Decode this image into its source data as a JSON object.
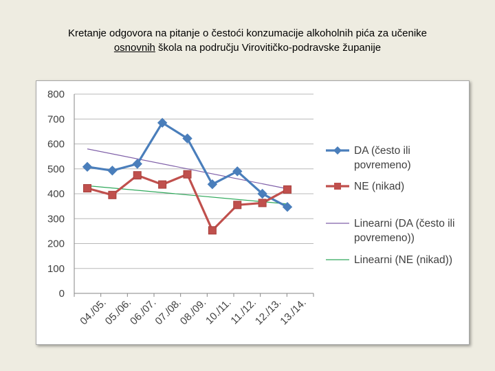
{
  "title_line1": "Kretanje odgovora na pitanje o čestoći konzumacije alkoholnih pića za učenike",
  "title_line2_underlined": "osnovnih",
  "title_line2_rest": " škola na području Virovitičko-podravske županije",
  "colors": {
    "da": "#4a7ebb",
    "ne": "#c0504d",
    "trend_da": "#7f5fa8",
    "trend_ne": "#2ea85a",
    "grid": "#b8b8b8"
  },
  "chart_data": {
    "type": "line",
    "categories": [
      "04./05.",
      "05./06.",
      "06./07.",
      "07./08.",
      "08./09.",
      "10./11.",
      "11./12.",
      "12./13.",
      "13./14."
    ],
    "series": [
      {
        "name": "DA (često ili povremeno)",
        "values": [
          508,
          493,
          520,
          685,
          622,
          438,
          490,
          400,
          347
        ],
        "marker": "diamond"
      },
      {
        "name": "NE (nikad)",
        "values": [
          422,
          395,
          474,
          437,
          478,
          253,
          355,
          363,
          417
        ],
        "marker": "square"
      }
    ],
    "trendlines": [
      {
        "name": "Linearni (DA (često ili povremeno))",
        "of": "DA (često ili povremeno)",
        "start": 580,
        "end": 420
      },
      {
        "name": "Linearni (NE (nikad))",
        "of": "NE (nikad)",
        "start": 432,
        "end": 359
      }
    ],
    "ylim": [
      0,
      800
    ],
    "yticks": [
      0,
      100,
      200,
      300,
      400,
      500,
      600,
      700,
      800
    ],
    "grid": "horizontal",
    "legend": "right"
  }
}
